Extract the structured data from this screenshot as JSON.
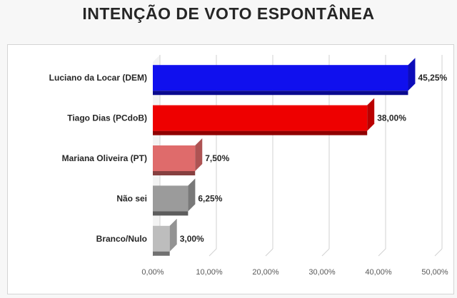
{
  "chart_title": "INTENÇÃO DE VOTO ESPONTÂNEA",
  "chart_data": {
    "type": "bar",
    "orientation": "horizontal",
    "title": "INTENÇÃO DE VOTO ESPONTÂNEA",
    "categories": [
      "Luciano da Locar (DEM)",
      "Tiago Dias (PCdoB)",
      "Mariana Oliveira (PT)",
      "Não sei",
      "Branco/Nulo"
    ],
    "values": [
      45.25,
      38.0,
      7.5,
      6.25,
      3.0
    ],
    "data_labels": [
      "45,25%",
      "38,00%",
      "7,50%",
      "6,25%",
      "3,00%"
    ],
    "colors": [
      "#1010ee",
      "#ee0000",
      "#df6b6b",
      "#9b9b9b",
      "#bdbdbd"
    ],
    "xlim": [
      0,
      50
    ],
    "x_ticks": [
      0,
      10,
      20,
      30,
      40,
      50
    ],
    "x_tick_labels": [
      "0,00%",
      "10,00%",
      "20,00%",
      "30,00%",
      "40,00%",
      "50,00%"
    ],
    "xlabel": "",
    "ylabel": "",
    "grid": true,
    "legend": "none"
  }
}
